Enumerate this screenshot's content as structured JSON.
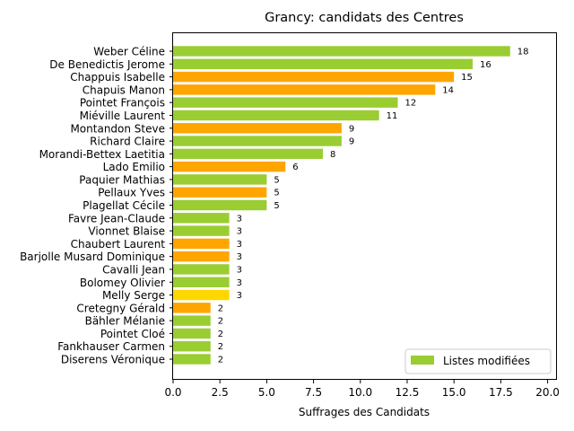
{
  "chart_data": {
    "type": "bar",
    "orientation": "horizontal",
    "title": "Grancy: candidats des Centres",
    "xlabel": "Suffrages des Candidats",
    "ylabel": "",
    "xlim": [
      0,
      20.5
    ],
    "xticks": [
      "0.0",
      "2.5",
      "5.0",
      "7.5",
      "10.0",
      "12.5",
      "15.0",
      "17.5",
      "20.0"
    ],
    "xtick_values": [
      0,
      2.5,
      5,
      7.5,
      10,
      12.5,
      15,
      17.5,
      20
    ],
    "grid": false,
    "legend": {
      "placement": "bottom-right",
      "entries": [
        {
          "label": "Listes modifiées",
          "color": "#9acd32"
        }
      ]
    },
    "colors": {
      "green": "#9acd32",
      "orange": "#ffa500",
      "gold": "#ffd700"
    },
    "bars": [
      {
        "name": "Weber Céline",
        "value": 18,
        "label": "18",
        "color": "#9acd32"
      },
      {
        "name": "De Benedictis Jerome",
        "value": 16,
        "label": "16",
        "color": "#9acd32"
      },
      {
        "name": "Chappuis Isabelle",
        "value": 15,
        "label": "15",
        "color": "#ffa500"
      },
      {
        "name": "Chapuis Manon",
        "value": 14,
        "label": "14",
        "color": "#ffa500"
      },
      {
        "name": "Pointet François",
        "value": 12,
        "label": "12",
        "color": "#9acd32"
      },
      {
        "name": "Miéville Laurent",
        "value": 11,
        "label": "11",
        "color": "#9acd32"
      },
      {
        "name": "Montandon Steve",
        "value": 9,
        "label": "9",
        "color": "#ffa500"
      },
      {
        "name": "Richard Claire",
        "value": 9,
        "label": "9",
        "color": "#9acd32"
      },
      {
        "name": "Morandi-Bettex Laetitia",
        "value": 8,
        "label": "8",
        "color": "#9acd32"
      },
      {
        "name": "Lado Emilio",
        "value": 6,
        "label": "6",
        "color": "#ffa500"
      },
      {
        "name": "Paquier Mathias",
        "value": 5,
        "label": "5",
        "color": "#9acd32"
      },
      {
        "name": "Pellaux Yves",
        "value": 5,
        "label": "5",
        "color": "#ffa500"
      },
      {
        "name": "Plagellat Cécile",
        "value": 5,
        "label": "5",
        "color": "#9acd32"
      },
      {
        "name": "Favre Jean-Claude",
        "value": 3,
        "label": "3",
        "color": "#9acd32"
      },
      {
        "name": "Vionnet Blaise",
        "value": 3,
        "label": "3",
        "color": "#9acd32"
      },
      {
        "name": "Chaubert Laurent",
        "value": 3,
        "label": "3",
        "color": "#ffa500"
      },
      {
        "name": "Barjolle Musard Dominique",
        "value": 3,
        "label": "3",
        "color": "#ffa500"
      },
      {
        "name": "Cavalli Jean",
        "value": 3,
        "label": "3",
        "color": "#9acd32"
      },
      {
        "name": "Bolomey Olivier",
        "value": 3,
        "label": "3",
        "color": "#9acd32"
      },
      {
        "name": "Melly Serge",
        "value": 3,
        "label": "3",
        "color": "#ffd700"
      },
      {
        "name": "Cretegny Gérald",
        "value": 2,
        "label": "2",
        "color": "#ffa500"
      },
      {
        "name": "Bähler Mélanie",
        "value": 2,
        "label": "2",
        "color": "#9acd32"
      },
      {
        "name": "Pointet Cloé",
        "value": 2,
        "label": "2",
        "color": "#9acd32"
      },
      {
        "name": "Fankhauser Carmen",
        "value": 2,
        "label": "2",
        "color": "#9acd32"
      },
      {
        "name": "Diserens Véronique",
        "value": 2,
        "label": "2",
        "color": "#9acd32"
      }
    ]
  }
}
